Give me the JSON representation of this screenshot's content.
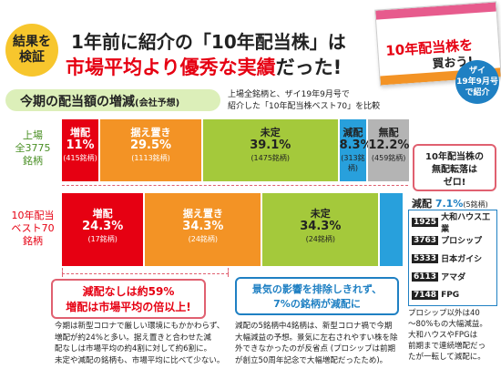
{
  "header": {
    "badge": "結果を\n検証",
    "line1_pre": "1年前に紹介の",
    "line1_red": "「10年配当株」",
    "line1_post": "は",
    "line2_red": "市場平均より優秀な実績",
    "line2_post": "だった!"
  },
  "magazine": {
    "cover_title": "10年配当株を",
    "cover_sub": "買おう!",
    "note": "ザイ\n19年9月号\nで紹介"
  },
  "section": {
    "title": "今期の配当額の増減",
    "title_small": "(会社予想)",
    "note": "上場全銘柄と、ザイ19年9月号で\n紹介した「10年配当株ベスト70」を比較"
  },
  "rows": [
    {
      "label": "上場\n全3775\n銘柄",
      "segments": [
        {
          "name": "増配",
          "value": "11%",
          "count": "(415銘柄)",
          "pct": 11,
          "color": "#e60012",
          "dark": false
        },
        {
          "name": "据え置き",
          "value": "29.5%",
          "count": "(1113銘柄)",
          "pct": 29.5,
          "color": "#f39325",
          "dark": false
        },
        {
          "name": "未定",
          "value": "39.1%",
          "count": "(1475銘柄)",
          "pct": 39.1,
          "color": "#a4c93b",
          "dark": true
        },
        {
          "name": "減配",
          "value": "8.3%",
          "count": "(313銘柄)",
          "pct": 8.3,
          "color": "#28a0dc",
          "dark": true
        },
        {
          "name": "無配",
          "value": "12.2%",
          "count": "(459銘柄)",
          "pct": 12.2,
          "color": "#b4b4b4",
          "dark": true
        }
      ]
    },
    {
      "label": "10年配当\nベスト70\n銘柄",
      "segments": [
        {
          "name": "増配",
          "value": "24.3%",
          "count": "(17銘柄)",
          "pct": 24.3,
          "color": "#e60012",
          "dark": false
        },
        {
          "name": "据え置き",
          "value": "34.3%",
          "count": "(24銘柄)",
          "pct": 34.3,
          "color": "#f39325",
          "dark": false
        },
        {
          "name": "未定",
          "value": "34.3%",
          "count": "(24銘柄)",
          "pct": 34.3,
          "color": "#a4c93b",
          "dark": true
        },
        {
          "name": "",
          "value": "",
          "count": "",
          "pct": 7.1,
          "color": "#28a0dc",
          "dark": true
        }
      ]
    }
  ],
  "callout_zero": "10年配当株の\n無配転落は\nゼロ!",
  "decrease2": {
    "label": "減配",
    "value": "7.1%",
    "count": "(5銘柄)"
  },
  "stocks": [
    {
      "code": "1925",
      "name": "大和ハウス工業"
    },
    {
      "code": "3763",
      "name": "プロシップ"
    },
    {
      "code": "5333",
      "name": "日本ガイシ"
    },
    {
      "code": "6113",
      "name": "アマダ"
    },
    {
      "code": "7148",
      "name": "FPG"
    }
  ],
  "stock_note": "プロシップ以外は40\n〜80%もの大幅減益。\n大和ハウスやFPGは\n前期まで連続増配だっ\nたが一転して減配に。",
  "box_red": "減配なしは約59%\n増配は市場平均の倍以上!",
  "box_blue": "景気の影響を排除しきれず、\n7%の銘柄が減配に",
  "body1": "今期は新型コロナで厳しい環境にもかかわらず、\n増配が約24%と多い。据え置きと合わせた減\n配なしは市場平均の約4割に対して約6割に。\n未定や減配の銘柄も、市場平均に比べて少ない。",
  "body2": "減配の5銘柄中4銘柄は、新型コロナ禍で今期\n大幅減益の予想。景気に左右されやすい株を除\n外できなかったのが反省点 (プロシップは前期\nが創立50周年記念で大幅増配だったため)。"
}
